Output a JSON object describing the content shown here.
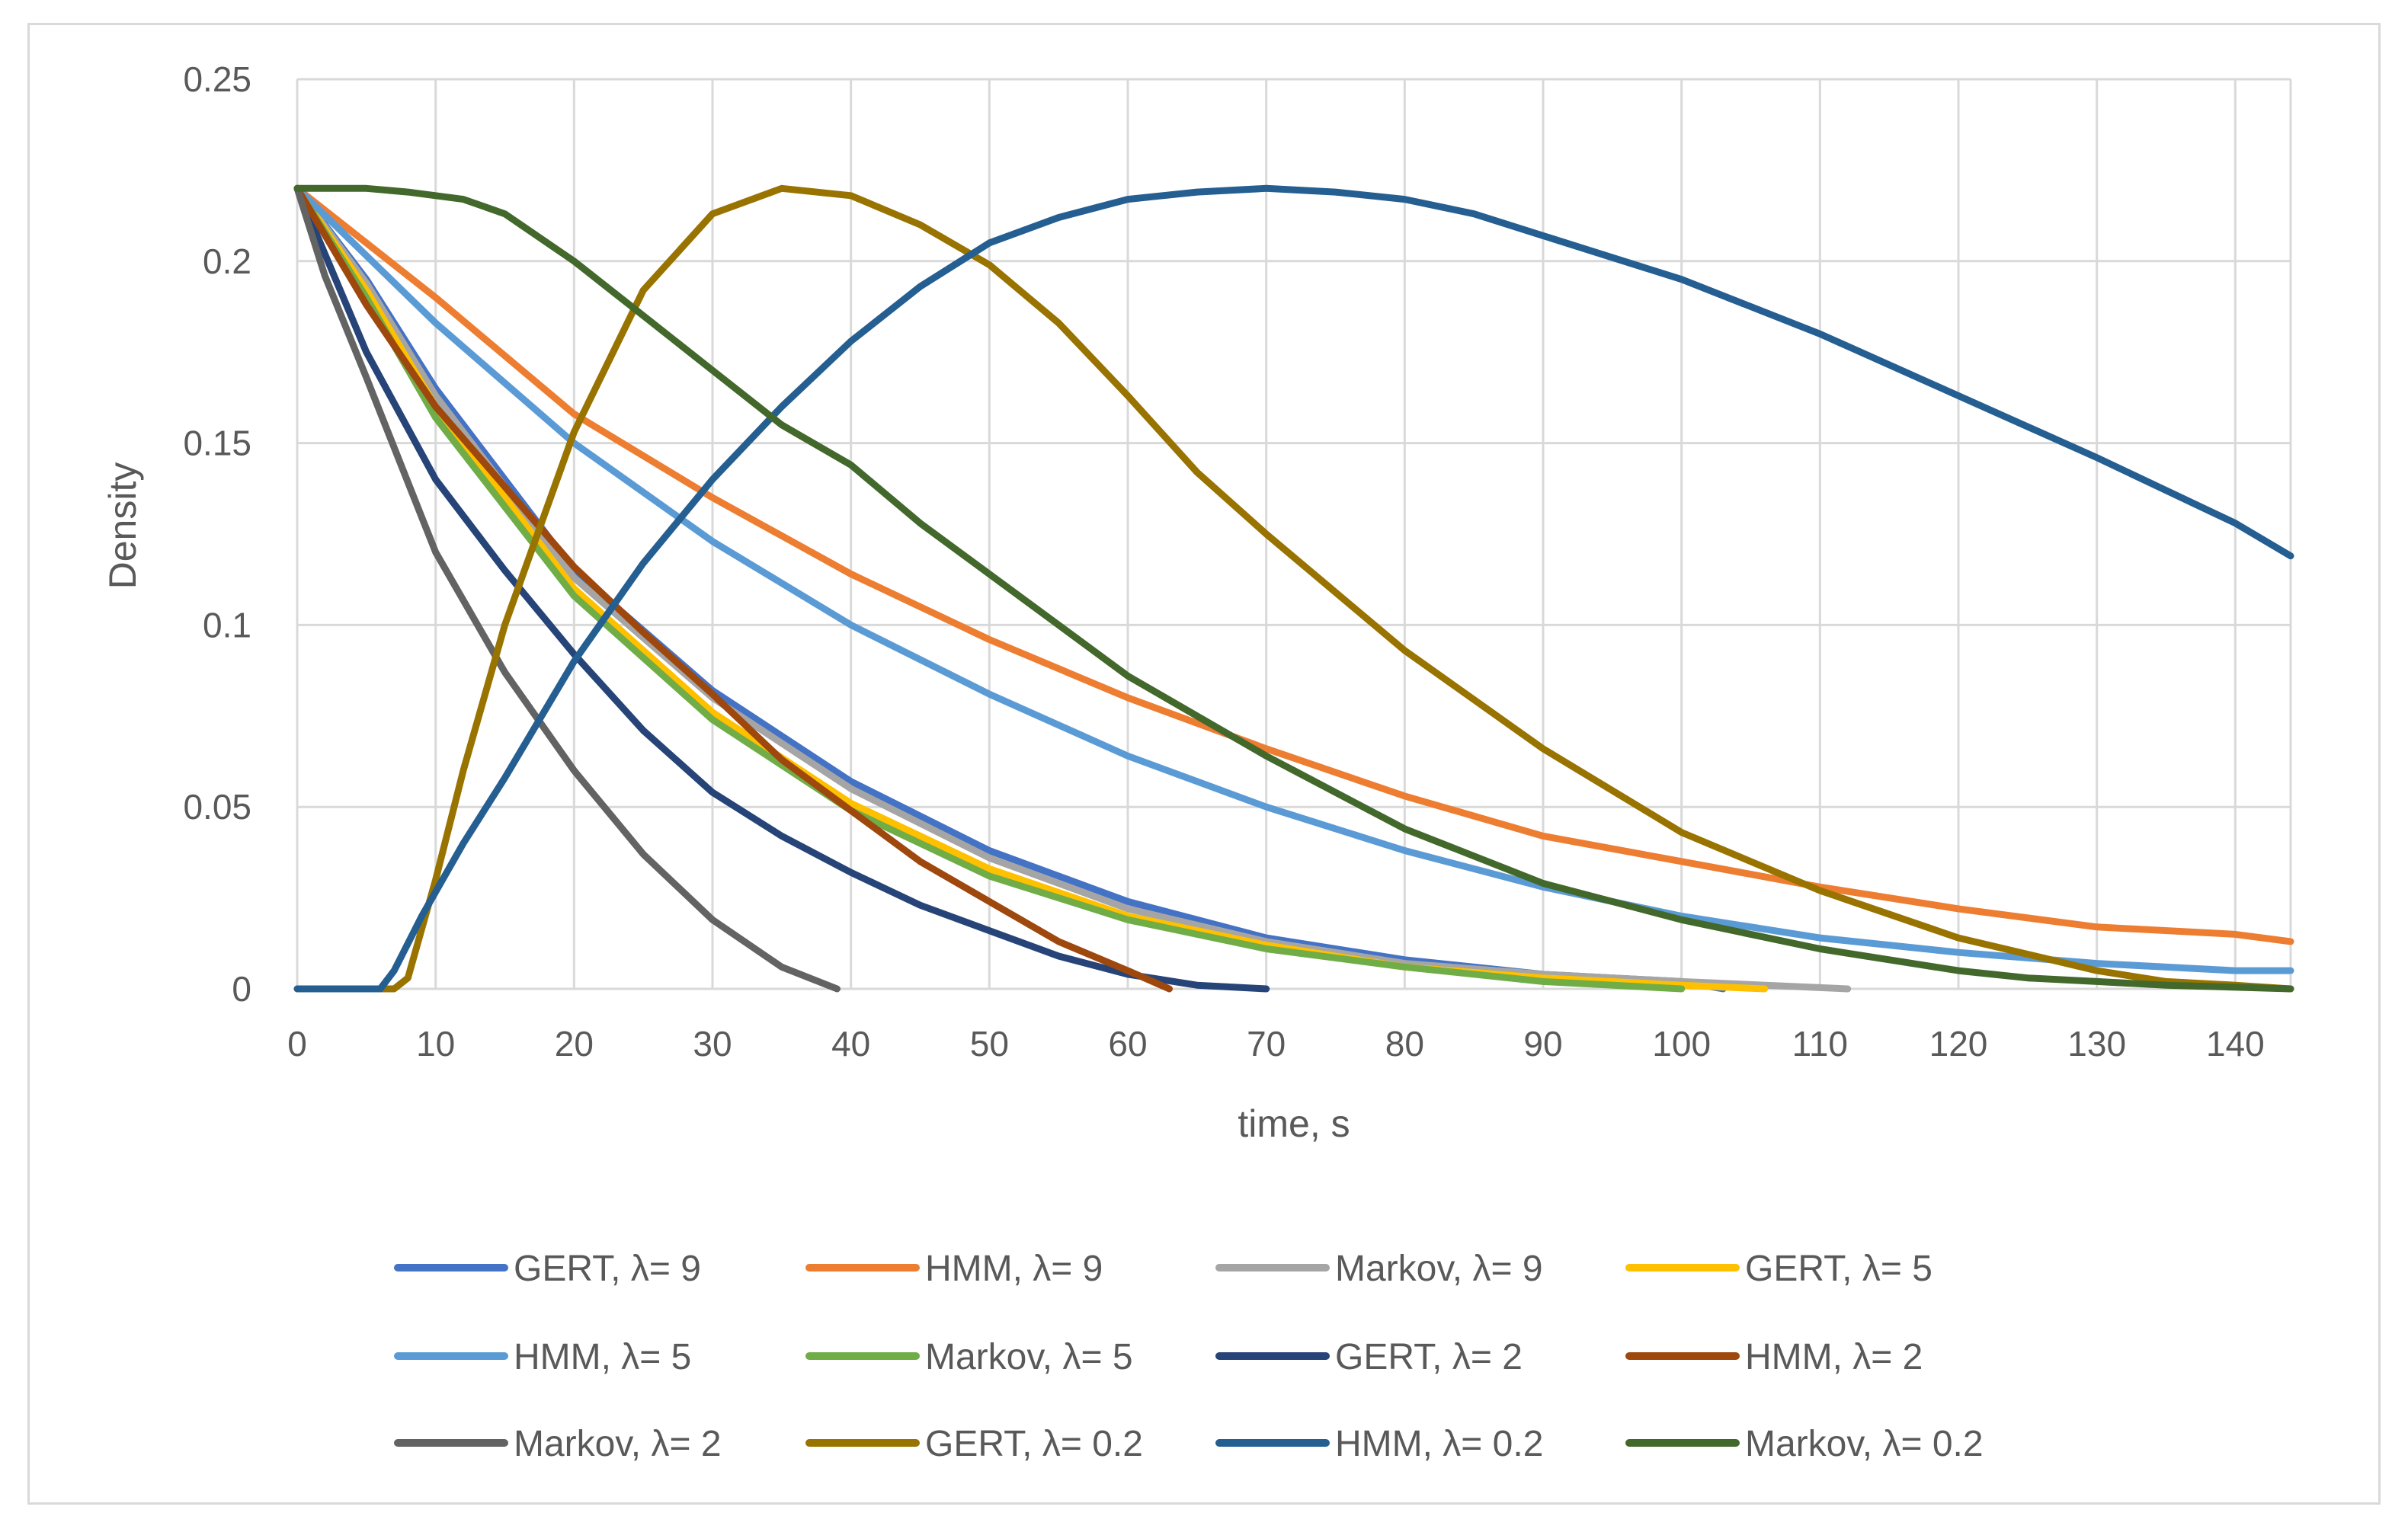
{
  "chart_data": {
    "type": "line",
    "title": "",
    "xlabel": "time, s",
    "ylabel": "Density",
    "xlim": [
      0,
      144
    ],
    "ylim": [
      0,
      0.25
    ],
    "xticks": [
      0,
      10,
      20,
      30,
      40,
      50,
      60,
      70,
      80,
      90,
      100,
      110,
      120,
      130,
      140
    ],
    "yticks": [
      0,
      0.05,
      0.1,
      0.15,
      0.2,
      0.25
    ],
    "ytick_labels": [
      "0",
      "0.05",
      "0.1",
      "0.15",
      "0.2",
      "0.25"
    ],
    "grid": true,
    "legend_position": "bottom",
    "series": [
      {
        "name": "GERT, λ= 9",
        "color": "#4472C4",
        "x": [
          0,
          5,
          10,
          20,
          30,
          40,
          50,
          60,
          70,
          80,
          90,
          100,
          103
        ],
        "y": [
          0.22,
          0.195,
          0.165,
          0.115,
          0.082,
          0.057,
          0.038,
          0.024,
          0.014,
          0.008,
          0.004,
          0.002,
          0
        ]
      },
      {
        "name": "HMM, λ= 9",
        "color": "#ED7D31",
        "x": [
          0,
          10,
          20,
          30,
          40,
          50,
          60,
          70,
          80,
          90,
          100,
          110,
          120,
          130,
          140,
          144
        ],
        "y": [
          0.22,
          0.19,
          0.158,
          0.135,
          0.114,
          0.096,
          0.08,
          0.066,
          0.053,
          0.042,
          0.035,
          0.028,
          0.022,
          0.017,
          0.015,
          0.013
        ]
      },
      {
        "name": "Markov, λ= 9",
        "color": "#A5A5A5",
        "x": [
          0,
          5,
          10,
          20,
          30,
          40,
          50,
          60,
          70,
          80,
          90,
          100,
          112
        ],
        "y": [
          0.22,
          0.194,
          0.163,
          0.113,
          0.08,
          0.055,
          0.036,
          0.022,
          0.013,
          0.007,
          0.004,
          0.002,
          0
        ]
      },
      {
        "name": "GERT, λ= 5",
        "color": "#FFC000",
        "x": [
          0,
          5,
          10,
          20,
          30,
          40,
          50,
          60,
          70,
          80,
          90,
          100,
          106
        ],
        "y": [
          0.22,
          0.192,
          0.16,
          0.11,
          0.076,
          0.051,
          0.033,
          0.02,
          0.012,
          0.006,
          0.003,
          0.001,
          0
        ]
      },
      {
        "name": "HMM, λ= 5",
        "color": "#5B9BD5",
        "x": [
          0,
          10,
          20,
          30,
          40,
          50,
          60,
          70,
          80,
          90,
          100,
          110,
          120,
          130,
          140,
          144
        ],
        "y": [
          0.22,
          0.183,
          0.15,
          0.123,
          0.1,
          0.081,
          0.064,
          0.05,
          0.038,
          0.028,
          0.02,
          0.014,
          0.01,
          0.007,
          0.005,
          0.005
        ]
      },
      {
        "name": "Markov, λ= 5",
        "color": "#70AD47",
        "x": [
          0,
          5,
          10,
          20,
          30,
          40,
          50,
          60,
          70,
          80,
          90,
          100
        ],
        "y": [
          0.22,
          0.19,
          0.157,
          0.108,
          0.074,
          0.049,
          0.031,
          0.019,
          0.011,
          0.006,
          0.002,
          0
        ]
      },
      {
        "name": "GERT, λ= 2",
        "color": "#264478",
        "x": [
          0,
          5,
          10,
          15,
          20,
          25,
          30,
          35,
          40,
          45,
          50,
          55,
          60,
          65,
          70
        ],
        "y": [
          0.22,
          0.175,
          0.14,
          0.115,
          0.092,
          0.071,
          0.054,
          0.042,
          0.032,
          0.023,
          0.016,
          0.009,
          0.004,
          0.001,
          0
        ]
      },
      {
        "name": "HMM, λ= 2",
        "color": "#9E480E",
        "x": [
          0,
          5,
          10,
          15,
          20,
          25,
          30,
          35,
          40,
          45,
          50,
          55,
          60,
          63
        ],
        "y": [
          0.22,
          0.188,
          0.16,
          0.138,
          0.116,
          0.098,
          0.081,
          0.063,
          0.049,
          0.035,
          0.024,
          0.013,
          0.005,
          0
        ]
      },
      {
        "name": "Markov, λ= 2",
        "color": "#636363",
        "x": [
          0,
          2,
          5,
          10,
          15,
          20,
          25,
          30,
          35,
          39
        ],
        "y": [
          0.22,
          0.196,
          0.168,
          0.12,
          0.087,
          0.06,
          0.037,
          0.019,
          0.006,
          0
        ]
      },
      {
        "name": "GERT, λ= 0.2",
        "color": "#997300",
        "x": [
          0,
          7,
          8,
          10,
          12,
          15,
          20,
          25,
          30,
          35,
          40,
          45,
          50,
          55,
          60,
          65,
          70,
          80,
          90,
          100,
          110,
          120,
          130,
          135,
          140,
          144
        ],
        "y": [
          0,
          0,
          0.003,
          0.03,
          0.06,
          0.1,
          0.153,
          0.192,
          0.213,
          0.22,
          0.218,
          0.21,
          0.199,
          0.183,
          0.163,
          0.142,
          0.125,
          0.093,
          0.066,
          0.043,
          0.027,
          0.014,
          0.005,
          0.002,
          0.001,
          0
        ]
      },
      {
        "name": "HMM, λ= 0.2",
        "color": "#255E91",
        "x": [
          0,
          6,
          7,
          9,
          12,
          15,
          20,
          25,
          30,
          35,
          40,
          45,
          50,
          55,
          60,
          65,
          70,
          75,
          80,
          85,
          90,
          100,
          110,
          120,
          130,
          140,
          144
        ],
        "y": [
          0,
          0,
          0.005,
          0.02,
          0.04,
          0.058,
          0.09,
          0.117,
          0.14,
          0.16,
          0.178,
          0.193,
          0.205,
          0.212,
          0.217,
          0.219,
          0.22,
          0.219,
          0.217,
          0.213,
          0.207,
          0.195,
          0.18,
          0.163,
          0.146,
          0.128,
          0.119
        ]
      },
      {
        "name": "Markov, λ= 0.2",
        "color": "#43682B",
        "x": [
          0,
          2,
          5,
          8,
          12,
          15,
          20,
          25,
          30,
          35,
          40,
          45,
          50,
          55,
          60,
          65,
          70,
          80,
          90,
          100,
          110,
          120,
          125,
          130,
          135,
          144
        ],
        "y": [
          0.22,
          0.22,
          0.22,
          0.219,
          0.217,
          0.213,
          0.2,
          0.185,
          0.17,
          0.155,
          0.144,
          0.128,
          0.114,
          0.1,
          0.086,
          0.075,
          0.064,
          0.044,
          0.029,
          0.019,
          0.011,
          0.005,
          0.003,
          0.002,
          0.001,
          0
        ]
      }
    ]
  }
}
